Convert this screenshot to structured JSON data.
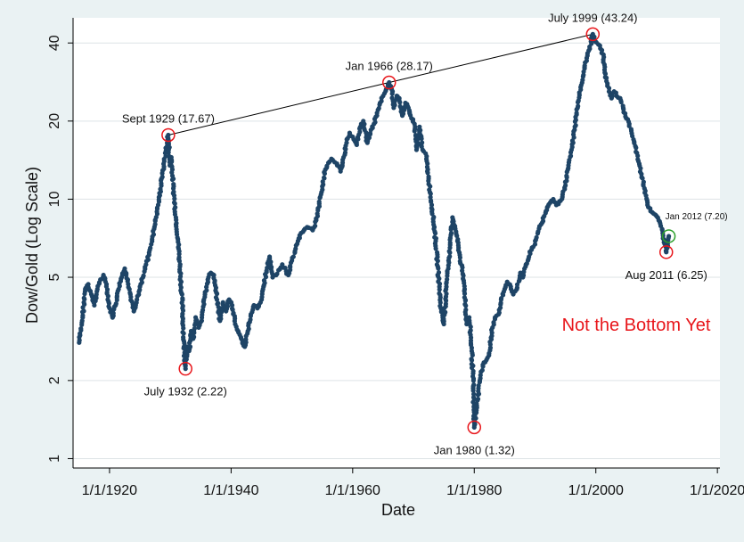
{
  "chart_data": {
    "type": "scatter",
    "title": "",
    "xlabel": "Date",
    "ylabel": "Dow/Gold (Log Scale)",
    "y_scale": "log",
    "xlim": [
      "1914-01-01",
      "2020-06-01"
    ],
    "ylim": [
      0.92,
      50
    ],
    "x_ticks": [
      "1/1/1920",
      "1/1/1940",
      "1/1/1960",
      "1/1/1980",
      "1/1/2000",
      "1/1/2020"
    ],
    "y_ticks": [
      1,
      2,
      5,
      10,
      20,
      40
    ],
    "grid": true,
    "colors": {
      "point": "#1e4466",
      "highlight": "#e8161b",
      "current": "#2ca02c",
      "plot_bg": "#ffffff",
      "page_bg": "#eaf2f3",
      "callout": "#e8161b"
    },
    "series": [
      {
        "points": [
          [
            "1915-01",
            2.8
          ],
          [
            "1915-07",
            3.4
          ],
          [
            "1916-01",
            4.5
          ],
          [
            "1916-07",
            4.7
          ],
          [
            "1917-01",
            4.3
          ],
          [
            "1917-07",
            3.9
          ],
          [
            "1918-01",
            4.5
          ],
          [
            "1918-07",
            4.9
          ],
          [
            "1919-01",
            5.1
          ],
          [
            "1919-07",
            4.7
          ],
          [
            "1920-01",
            3.8
          ],
          [
            "1920-07",
            3.5
          ],
          [
            "1921-01",
            3.9
          ],
          [
            "1921-07",
            4.5
          ],
          [
            "1922-01",
            5.0
          ],
          [
            "1922-07",
            5.4
          ],
          [
            "1923-01",
            4.9
          ],
          [
            "1923-07",
            4.2
          ],
          [
            "1924-01",
            3.7
          ],
          [
            "1924-07",
            4.1
          ],
          [
            "1925-01",
            4.6
          ],
          [
            "1925-07",
            5.0
          ],
          [
            "1926-01",
            5.6
          ],
          [
            "1926-07",
            6.1
          ],
          [
            "1927-01",
            7.0
          ],
          [
            "1927-07",
            8.0
          ],
          [
            "1928-01",
            9.5
          ],
          [
            "1928-07",
            11.5
          ],
          [
            "1929-01",
            14.0
          ],
          [
            "1929-09",
            17.67
          ],
          [
            "1929-12",
            13.5
          ],
          [
            "1930-03",
            14.5
          ],
          [
            "1930-07",
            11.0
          ],
          [
            "1930-12",
            8.5
          ],
          [
            "1931-04",
            7.0
          ],
          [
            "1931-08",
            5.5
          ],
          [
            "1932-01",
            3.8
          ],
          [
            "1932-04",
            2.7
          ],
          [
            "1932-07",
            2.22
          ],
          [
            "1932-10",
            2.7
          ],
          [
            "1933-02",
            2.6
          ],
          [
            "1933-06",
            3.1
          ],
          [
            "1933-10",
            2.9
          ],
          [
            "1934-03",
            3.5
          ],
          [
            "1934-09",
            3.2
          ],
          [
            "1935-03",
            3.4
          ],
          [
            "1935-09",
            4.2
          ],
          [
            "1936-03",
            4.9
          ],
          [
            "1936-09",
            5.2
          ],
          [
            "1937-03",
            5.1
          ],
          [
            "1937-09",
            4.1
          ],
          [
            "1938-03",
            3.4
          ],
          [
            "1938-09",
            4.0
          ],
          [
            "1939-03",
            3.7
          ],
          [
            "1939-09",
            4.1
          ],
          [
            "1940-03",
            3.9
          ],
          [
            "1940-09",
            3.3
          ],
          [
            "1941-03",
            3.1
          ],
          [
            "1941-09",
            2.9
          ],
          [
            "1942-04",
            2.7
          ],
          [
            "1942-10",
            3.1
          ],
          [
            "1943-04",
            3.6
          ],
          [
            "1943-10",
            3.9
          ],
          [
            "1944-05",
            3.8
          ],
          [
            "1944-11",
            4.0
          ],
          [
            "1945-05",
            4.6
          ],
          [
            "1945-11",
            5.3
          ],
          [
            "1946-05",
            6.0
          ],
          [
            "1946-11",
            5.0
          ],
          [
            "1947-06",
            5.1
          ],
          [
            "1948-06",
            5.6
          ],
          [
            "1949-06",
            5.1
          ],
          [
            "1950-01",
            5.8
          ],
          [
            "1950-07",
            6.3
          ],
          [
            "1951-01",
            6.9
          ],
          [
            "1951-07",
            7.4
          ],
          [
            "1952-01",
            7.6
          ],
          [
            "1952-07",
            7.8
          ],
          [
            "1953-06",
            7.6
          ],
          [
            "1954-01",
            8.3
          ],
          [
            "1954-07",
            9.6
          ],
          [
            "1955-01",
            11.2
          ],
          [
            "1955-07",
            13.0
          ],
          [
            "1956-01",
            13.8
          ],
          [
            "1956-07",
            14.3
          ],
          [
            "1957-06",
            13.7
          ],
          [
            "1958-01",
            12.8
          ],
          [
            "1958-07",
            14.5
          ],
          [
            "1959-01",
            16.5
          ],
          [
            "1959-07",
            18.0
          ],
          [
            "1960-03",
            17.0
          ],
          [
            "1960-09",
            16.2
          ],
          [
            "1961-04",
            19.0
          ],
          [
            "1961-10",
            20.0
          ],
          [
            "1962-06",
            16.5
          ],
          [
            "1963-01",
            18.5
          ],
          [
            "1963-07",
            19.5
          ],
          [
            "1964-01",
            21.5
          ],
          [
            "1964-07",
            23.5
          ],
          [
            "1965-01",
            25.0
          ],
          [
            "1965-07",
            26.5
          ],
          [
            "1966-01",
            28.17
          ],
          [
            "1966-06",
            26.5
          ],
          [
            "1966-10",
            22.5
          ],
          [
            "1967-04",
            25.0
          ],
          [
            "1967-09",
            24.5
          ],
          [
            "1968-03",
            21.0
          ],
          [
            "1968-09",
            23.5
          ],
          [
            "1969-03",
            22.5
          ],
          [
            "1969-09",
            20.5
          ],
          [
            "1970-03",
            19.5
          ],
          [
            "1970-07",
            15.5
          ],
          [
            "1971-01",
            19.0
          ],
          [
            "1971-07",
            15.5
          ],
          [
            "1972-01",
            15.0
          ],
          [
            "1972-07",
            12.0
          ],
          [
            "1973-01",
            9.5
          ],
          [
            "1973-07",
            7.5
          ],
          [
            "1974-01",
            5.5
          ],
          [
            "1974-07",
            3.8
          ],
          [
            "1975-01",
            3.3
          ],
          [
            "1975-06",
            4.6
          ],
          [
            "1976-01",
            6.5
          ],
          [
            "1976-06",
            8.5
          ],
          [
            "1977-01",
            7.5
          ],
          [
            "1977-06",
            6.5
          ],
          [
            "1978-01",
            5.3
          ],
          [
            "1978-06",
            4.5
          ],
          [
            "1978-10",
            3.3
          ],
          [
            "1979-03",
            3.5
          ],
          [
            "1979-08",
            2.6
          ],
          [
            "1979-11",
            1.9
          ],
          [
            "1980-01",
            1.32
          ],
          [
            "1980-06",
            1.6
          ],
          [
            "1980-12",
            2.0
          ],
          [
            "1981-06",
            2.3
          ],
          [
            "1982-01",
            2.4
          ],
          [
            "1982-06",
            2.5
          ],
          [
            "1983-01",
            3.2
          ],
          [
            "1983-06",
            3.5
          ],
          [
            "1984-01",
            3.6
          ],
          [
            "1984-06",
            4.1
          ],
          [
            "1985-01",
            4.5
          ],
          [
            "1985-06",
            4.8
          ],
          [
            "1986-01",
            4.6
          ],
          [
            "1986-06",
            4.3
          ],
          [
            "1987-01",
            4.5
          ],
          [
            "1987-08",
            5.2
          ],
          [
            "1988-01",
            5.0
          ],
          [
            "1988-07",
            5.6
          ],
          [
            "1989-01",
            6.0
          ],
          [
            "1989-07",
            6.5
          ],
          [
            "1990-01",
            6.7
          ],
          [
            "1990-07",
            7.5
          ],
          [
            "1991-01",
            8.0
          ],
          [
            "1991-07",
            8.6
          ],
          [
            "1992-01",
            9.3
          ],
          [
            "1992-07",
            9.7
          ],
          [
            "1993-01",
            10.0
          ],
          [
            "1993-07",
            9.5
          ],
          [
            "1994-01",
            9.8
          ],
          [
            "1994-07",
            10.2
          ],
          [
            "1995-01",
            11.3
          ],
          [
            "1995-07",
            13.5
          ],
          [
            "1996-01",
            15.5
          ],
          [
            "1996-07",
            18.5
          ],
          [
            "1997-01",
            22.5
          ],
          [
            "1997-07",
            27.0
          ],
          [
            "1998-01",
            31.0
          ],
          [
            "1998-07",
            35.0
          ],
          [
            "1999-01",
            38.0
          ],
          [
            "1999-07",
            43.24
          ],
          [
            "1999-12",
            40.5
          ],
          [
            "2000-06",
            39.5
          ],
          [
            "2001-01",
            37.5
          ],
          [
            "2001-06",
            33.0
          ],
          [
            "2001-10",
            28.5
          ],
          [
            "2002-03",
            26.0
          ],
          [
            "2002-08",
            24.5
          ],
          [
            "2003-01",
            26.0
          ],
          [
            "2003-06",
            25.0
          ],
          [
            "2004-01",
            24.5
          ],
          [
            "2004-07",
            22.5
          ],
          [
            "2005-01",
            20.5
          ],
          [
            "2005-07",
            19.5
          ],
          [
            "2006-01",
            17.5
          ],
          [
            "2006-07",
            16.0
          ],
          [
            "2007-01",
            14.0
          ],
          [
            "2007-07",
            12.5
          ],
          [
            "2008-01",
            11.0
          ],
          [
            "2008-07",
            9.5
          ],
          [
            "2009-01",
            9.0
          ],
          [
            "2009-07",
            8.8
          ],
          [
            "2010-01",
            8.6
          ],
          [
            "2010-07",
            8.2
          ],
          [
            "2011-01",
            7.4
          ],
          [
            "2011-08",
            6.25
          ],
          [
            "2012-01",
            7.2
          ]
        ]
      }
    ],
    "highlights": [
      {
        "x": "1929-09",
        "y": 17.67,
        "label": "Sept 1929 (17.67)",
        "pos": "above"
      },
      {
        "x": "1932-07",
        "y": 2.22,
        "label": "July 1932 (2.22)",
        "pos": "below"
      },
      {
        "x": "1966-01",
        "y": 28.17,
        "label": "Jan 1966 (28.17)",
        "pos": "above"
      },
      {
        "x": "1980-01",
        "y": 1.32,
        "label": "Jan 1980 (1.32)",
        "pos": "below"
      },
      {
        "x": "1999-07",
        "y": 43.24,
        "label": "July 1999 (43.24)",
        "pos": "above"
      },
      {
        "x": "2011-08",
        "y": 6.25,
        "label": "Aug 2011 (6.25)",
        "pos": "below"
      }
    ],
    "current_point": {
      "x": "2012-01",
      "y": 7.2,
      "label": "Jan 2012 (7.20)"
    },
    "trendline": [
      [
        "1929-09",
        17.67
      ],
      [
        "1966-01",
        28.17
      ],
      [
        "1999-07",
        43.24
      ]
    ],
    "annotations": [
      {
        "text": "Not the Bottom Yet",
        "color": "#e8161b"
      }
    ]
  }
}
